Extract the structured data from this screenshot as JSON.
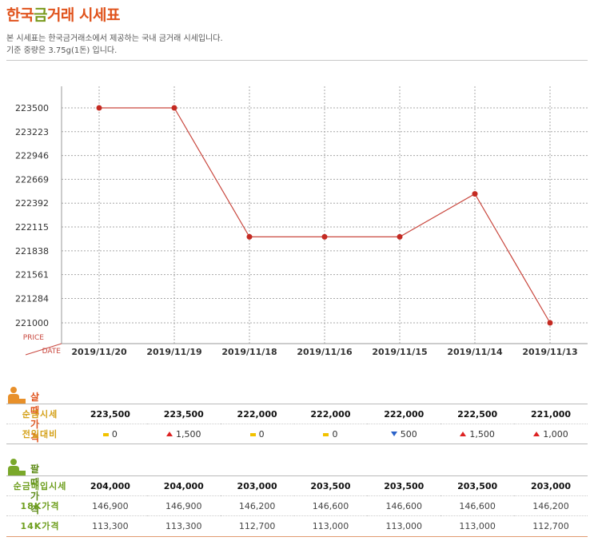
{
  "header": {
    "title_part1": "한국",
    "title_part2": "금",
    "title_part3": "거래 시세표",
    "desc1": "본 시세표는 한국금거래소에서 제공하는 국내 금거래 시세입니다.",
    "desc2": "기준 중량은 3.75g(1돈) 입니다."
  },
  "chart_data": {
    "type": "line",
    "x": [
      "2019/11/20",
      "2019/11/19",
      "2019/11/18",
      "2019/11/16",
      "2019/11/15",
      "2019/11/14",
      "2019/11/13"
    ],
    "y": [
      223500,
      223500,
      222000,
      222000,
      222000,
      222500,
      221000
    ],
    "yticks": [
      223500,
      223223,
      222946,
      222669,
      222392,
      222115,
      221838,
      221561,
      221284,
      221000
    ],
    "ylabel": "PRICE",
    "xlabel": "DATE",
    "ylim": [
      221000,
      223500
    ],
    "grid": true,
    "line_color": "#c9483f"
  },
  "buy": {
    "title": "살 때 가격",
    "rows": [
      {
        "label": "순금시세",
        "values": [
          "223,500",
          "223,500",
          "222,000",
          "222,000",
          "222,000",
          "222,500",
          "221,000"
        ]
      },
      {
        "label": "전일대비",
        "changes": [
          {
            "dir": "flat",
            "text": "0"
          },
          {
            "dir": "up",
            "text": "1,500"
          },
          {
            "dir": "flat",
            "text": "0"
          },
          {
            "dir": "flat",
            "text": "0"
          },
          {
            "dir": "down",
            "text": "500"
          },
          {
            "dir": "up",
            "text": "1,500"
          },
          {
            "dir": "up",
            "text": "1,000"
          }
        ]
      }
    ]
  },
  "sell": {
    "title": "팔 때 가격",
    "rows": [
      {
        "label": "순금매입시세",
        "values": [
          "204,000",
          "204,000",
          "203,000",
          "203,500",
          "203,500",
          "203,500",
          "203,000"
        ]
      },
      {
        "label": "18K가격",
        "values": [
          "146,900",
          "146,900",
          "146,200",
          "146,600",
          "146,600",
          "146,600",
          "146,200"
        ]
      },
      {
        "label": "14K가격",
        "values": [
          "113,300",
          "113,300",
          "112,700",
          "113,000",
          "113,000",
          "113,000",
          "112,700"
        ]
      }
    ]
  },
  "colors": {
    "accent_orange": "#e0531c",
    "accent_green": "#7a9a1e",
    "buy_label": "#d4a017",
    "sell_label": "#6e9e1e",
    "up": "#dd2222",
    "down": "#2a62c9",
    "flat": "#f2c200"
  },
  "icons": {
    "buy": "person-orange-icon",
    "sell": "person-green-icon"
  }
}
